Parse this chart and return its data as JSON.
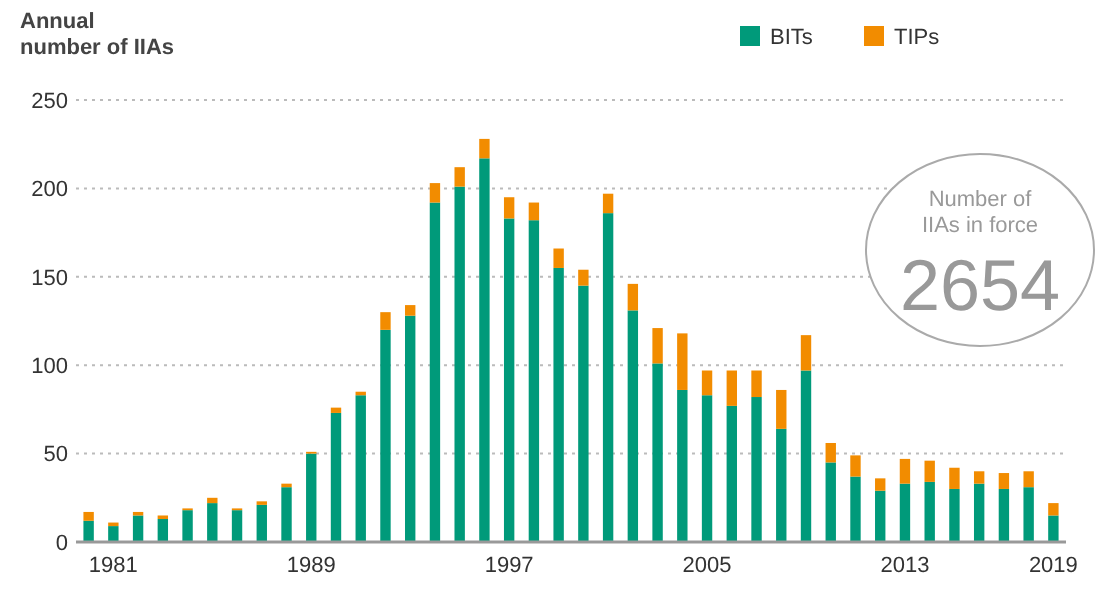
{
  "chart_data": {
    "type": "bar",
    "stacked": true,
    "ylabel": "Annual number of IIAs",
    "categories": [
      null,
      "1981",
      null,
      null,
      null,
      null,
      null,
      null,
      null,
      "1989",
      null,
      null,
      null,
      null,
      null,
      null,
      null,
      "1997",
      null,
      null,
      null,
      null,
      null,
      null,
      null,
      "2005",
      null,
      null,
      null,
      null,
      null,
      null,
      null,
      "2013",
      null,
      null,
      null,
      null,
      null,
      "2019"
    ],
    "series": [
      {
        "name": "BITs",
        "color": "#009a7a",
        "values": [
          12,
          9,
          15,
          13,
          18,
          22,
          18,
          21,
          31,
          50,
          73,
          83,
          120,
          128,
          192,
          201,
          217,
          183,
          182,
          155,
          145,
          186,
          131,
          101,
          86,
          83,
          77,
          82,
          64,
          97,
          45,
          37,
          29,
          33,
          34,
          30,
          33,
          30,
          31,
          15
        ]
      },
      {
        "name": "TIPs",
        "color": "#f28c00",
        "values": [
          5,
          2,
          2,
          2,
          1,
          3,
          1,
          2,
          2,
          1,
          3,
          2,
          10,
          6,
          11,
          11,
          11,
          12,
          10,
          11,
          9,
          11,
          15,
          20,
          32,
          14,
          20,
          15,
          22,
          20,
          11,
          12,
          7,
          14,
          12,
          12,
          7,
          9,
          9,
          7
        ]
      }
    ],
    "ylim": [
      0,
      250
    ],
    "yticks": [
      0,
      50,
      100,
      150,
      200,
      250
    ],
    "grid": "y",
    "legend": "top right",
    "annotations": [
      "Number of IIAs in force",
      "2654"
    ]
  }
}
